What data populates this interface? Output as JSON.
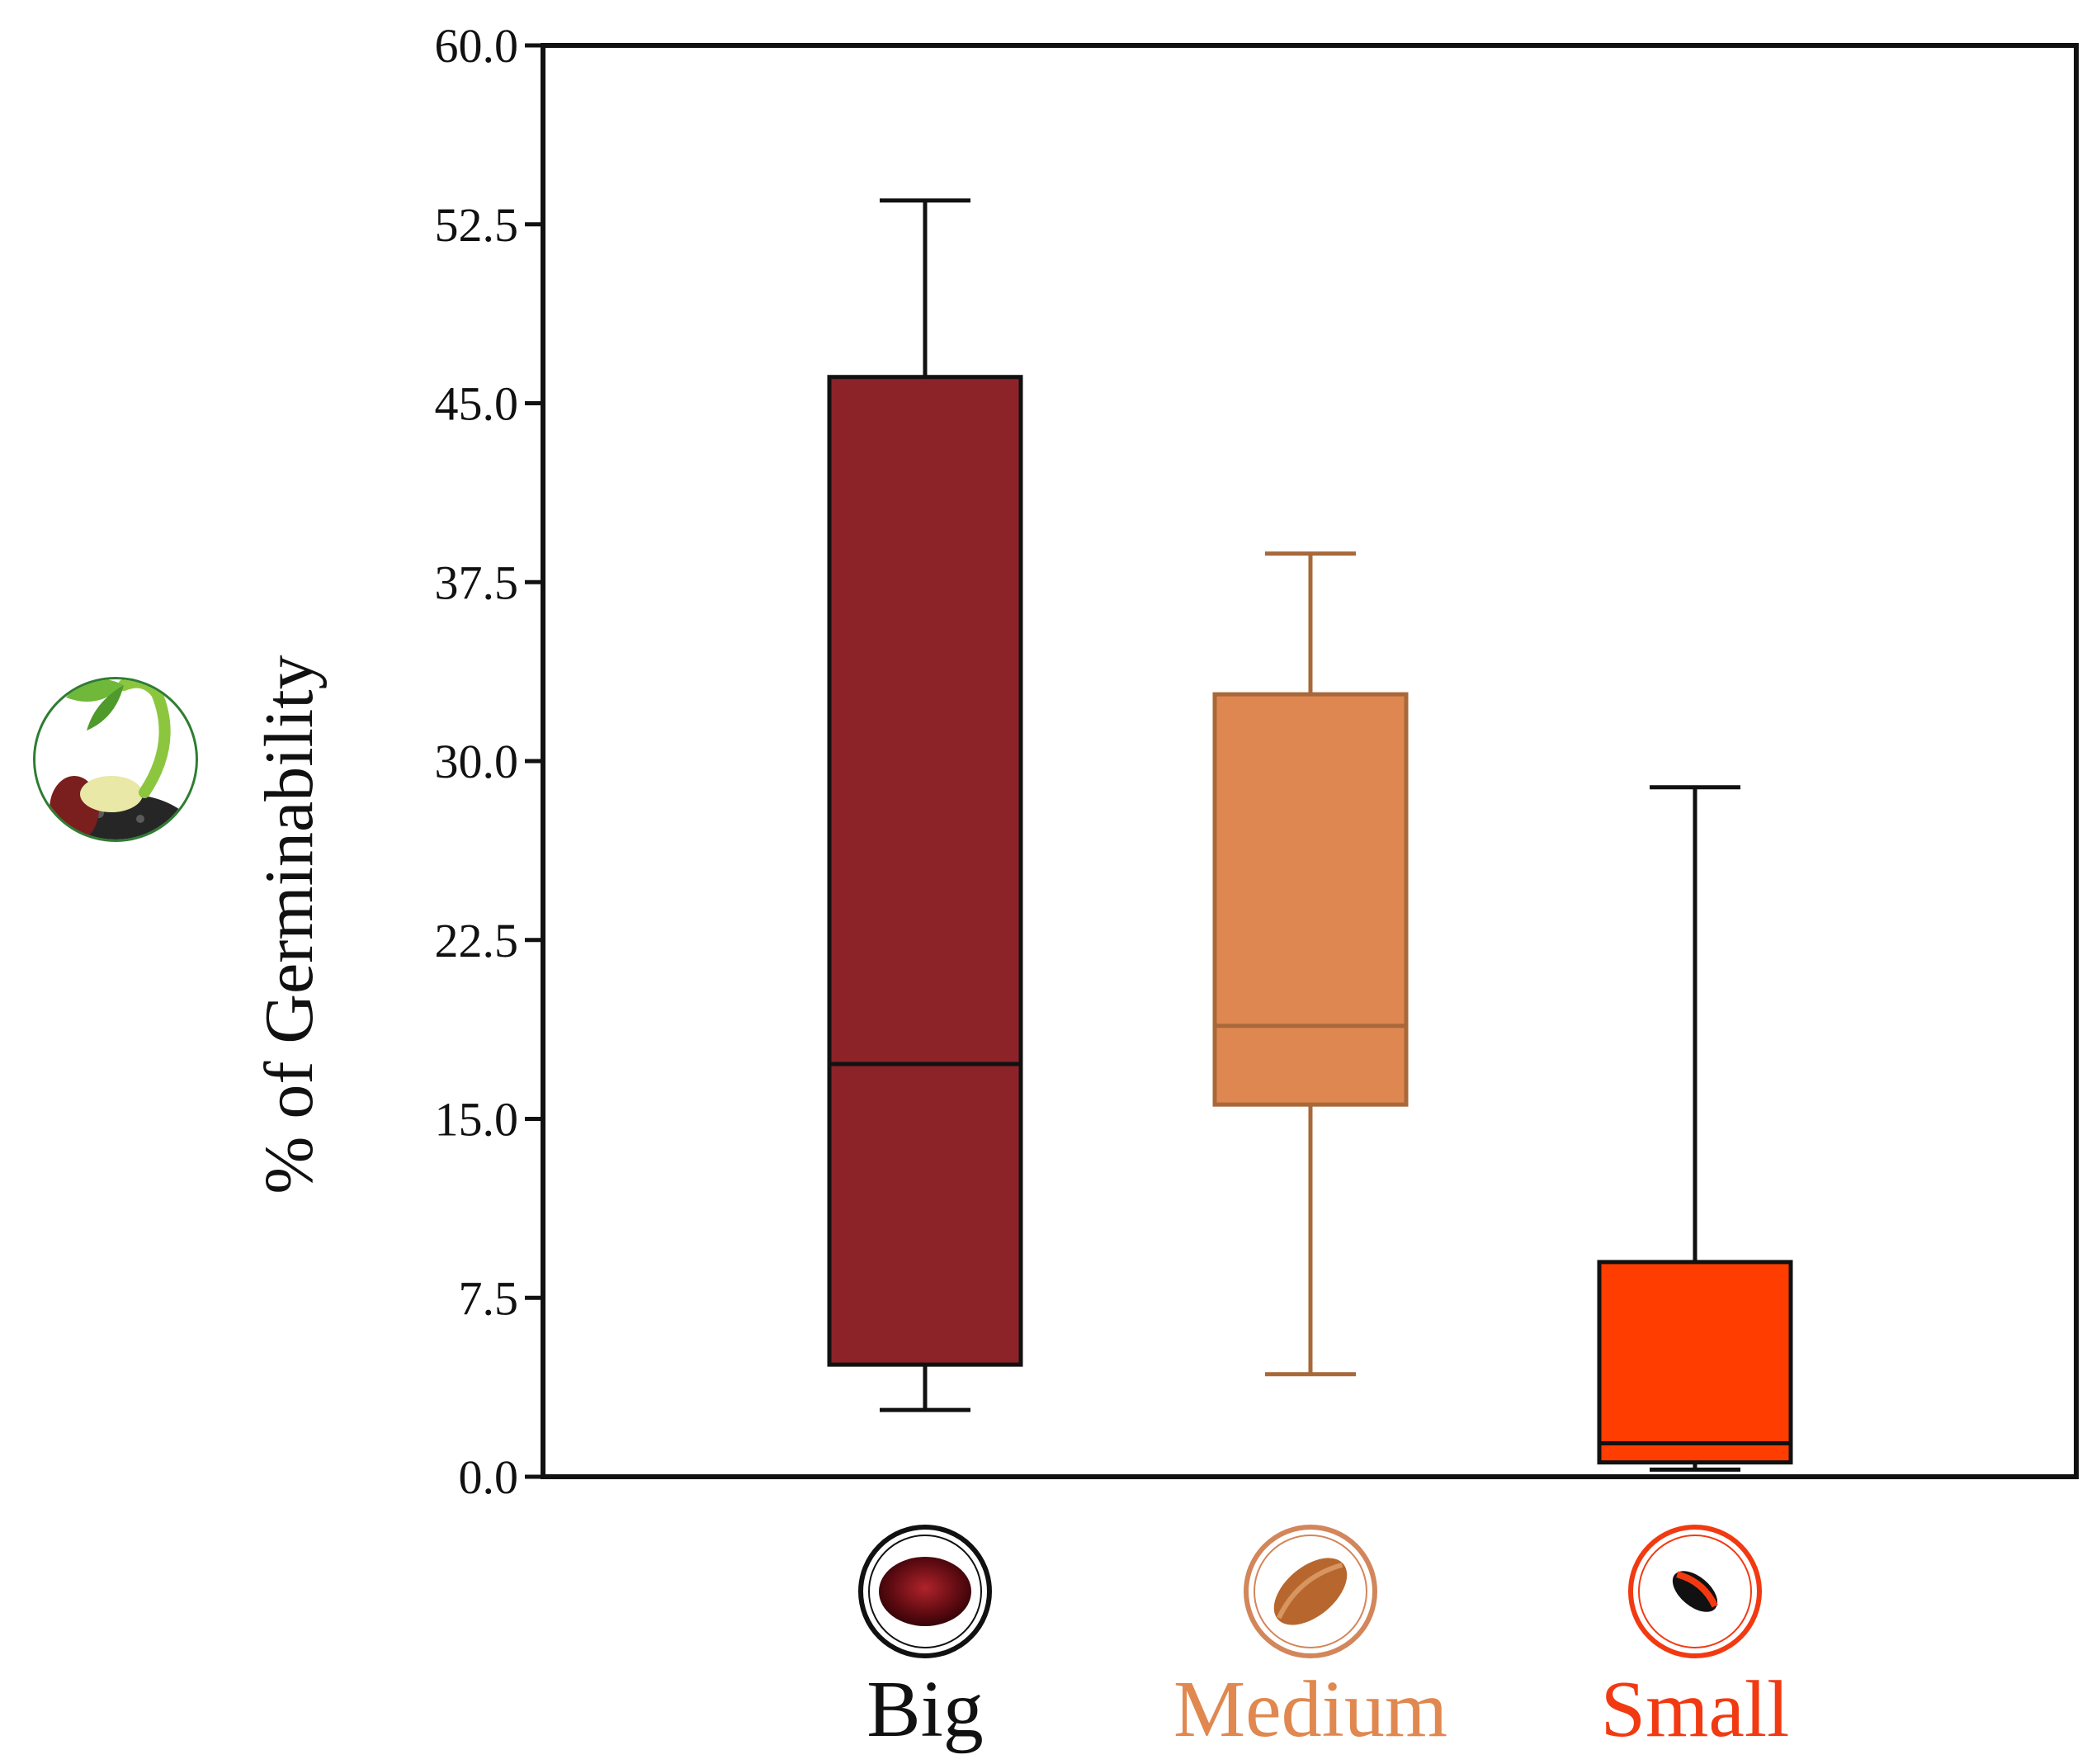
{
  "chart_data": {
    "type": "box",
    "ylabel": "% of Germinability",
    "xlabel": "",
    "ylim": [
      0,
      60
    ],
    "yticks": [
      "0.0",
      "7.5",
      "15.0",
      "22.5",
      "30.0",
      "37.5",
      "45.0",
      "52.5",
      "60.0"
    ],
    "grid": false,
    "categories": [
      "Big",
      "Medium",
      "Small"
    ],
    "series": [
      {
        "category": "Big",
        "whisker_low": 2.8,
        "q1": 4.7,
        "median": 17.3,
        "q3": 46.1,
        "whisker_high": 53.5,
        "color": "#8B2329",
        "line_color": "#111111",
        "label_color": "#111111",
        "icon": "big-seed-icon"
      },
      {
        "category": "Medium",
        "whisker_low": 4.3,
        "q1": 15.6,
        "median": 18.9,
        "q3": 32.8,
        "whisker_high": 38.7,
        "color": "#DF8751",
        "line_color": "#A8683A",
        "label_color": "#E0884F",
        "icon": "medium-seed-icon"
      },
      {
        "category": "Small",
        "whisker_low": 0.3,
        "q1": 0.6,
        "median": 1.4,
        "q3": 9.0,
        "whisker_high": 28.9,
        "color": "#FF3D00",
        "line_color": "#111111",
        "label_color": "#F23A12",
        "icon": "small-seed-icon"
      }
    ],
    "ylabel_icon": "seedling-icon"
  }
}
